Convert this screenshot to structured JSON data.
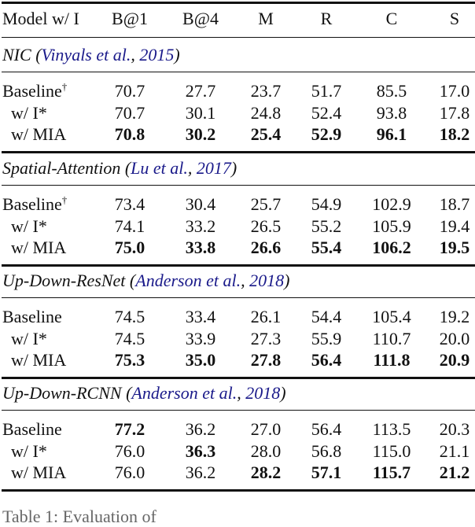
{
  "header": [
    "Model w/ I",
    "B@1",
    "B@4",
    "M",
    "R",
    "C",
    "S"
  ],
  "sections": [
    {
      "model": "NIC",
      "citation": "Vinyals et al.",
      "year": "2015",
      "rows": [
        {
          "label": "Baseline",
          "dagger": "†",
          "values": [
            "70.7",
            "27.7",
            "23.7",
            "51.7",
            "85.5",
            "17.0"
          ],
          "bold": [
            false,
            false,
            false,
            false,
            false,
            false
          ]
        },
        {
          "label": "w/ I*",
          "values": [
            "70.7",
            "30.1",
            "24.8",
            "52.4",
            "93.8",
            "17.8"
          ],
          "bold": [
            false,
            false,
            false,
            false,
            false,
            false
          ]
        },
        {
          "label": "w/ MIA",
          "values": [
            "70.8",
            "30.2",
            "25.4",
            "52.9",
            "96.1",
            "18.2"
          ],
          "bold": [
            true,
            true,
            true,
            true,
            true,
            true
          ]
        }
      ]
    },
    {
      "model": "Spatial-Attention",
      "citation": "Lu et al.",
      "year": "2017",
      "rows": [
        {
          "label": "Baseline",
          "dagger": "†",
          "values": [
            "73.4",
            "30.4",
            "25.7",
            "54.9",
            "102.9",
            "18.7"
          ],
          "bold": [
            false,
            false,
            false,
            false,
            false,
            false
          ]
        },
        {
          "label": "w/ I*",
          "values": [
            "74.1",
            "33.2",
            "26.5",
            "55.2",
            "105.9",
            "19.4"
          ],
          "bold": [
            false,
            false,
            false,
            false,
            false,
            false
          ]
        },
        {
          "label": "w/ MIA",
          "values": [
            "75.0",
            "33.8",
            "26.6",
            "55.4",
            "106.2",
            "19.5"
          ],
          "bold": [
            true,
            true,
            true,
            true,
            true,
            true
          ]
        }
      ]
    },
    {
      "model": "Up-Down-ResNet",
      "citation": "Anderson et al.",
      "year": "2018",
      "rows": [
        {
          "label": "Baseline",
          "values": [
            "74.5",
            "33.4",
            "26.1",
            "54.4",
            "105.4",
            "19.2"
          ],
          "bold": [
            false,
            false,
            false,
            false,
            false,
            false
          ]
        },
        {
          "label": "w/ I*",
          "values": [
            "74.5",
            "33.9",
            "27.3",
            "55.9",
            "110.7",
            "20.0"
          ],
          "bold": [
            false,
            false,
            false,
            false,
            false,
            false
          ]
        },
        {
          "label": "w/ MIA",
          "values": [
            "75.3",
            "35.0",
            "27.8",
            "56.4",
            "111.8",
            "20.9"
          ],
          "bold": [
            true,
            true,
            true,
            true,
            true,
            true
          ]
        }
      ]
    },
    {
      "model": "Up-Down-RCNN",
      "citation": "Anderson et al.",
      "year": "2018",
      "rows": [
        {
          "label": "Baseline",
          "values": [
            "77.2",
            "36.2",
            "27.0",
            "56.4",
            "113.5",
            "20.3"
          ],
          "bold": [
            true,
            false,
            false,
            false,
            false,
            false
          ]
        },
        {
          "label": "w/ I*",
          "values": [
            "76.0",
            "36.3",
            "28.0",
            "56.8",
            "115.0",
            "21.1"
          ],
          "bold": [
            false,
            true,
            false,
            false,
            false,
            false
          ]
        },
        {
          "label": "w/ MIA",
          "values": [
            "76.0",
            "36.2",
            "28.2",
            "57.1",
            "115.7",
            "21.2"
          ],
          "bold": [
            false,
            false,
            true,
            true,
            true,
            true
          ]
        }
      ]
    }
  ],
  "caption": "Table 1: Evaluation of",
  "colors": {
    "link": "#1a1a8a",
    "text": "#111111"
  }
}
